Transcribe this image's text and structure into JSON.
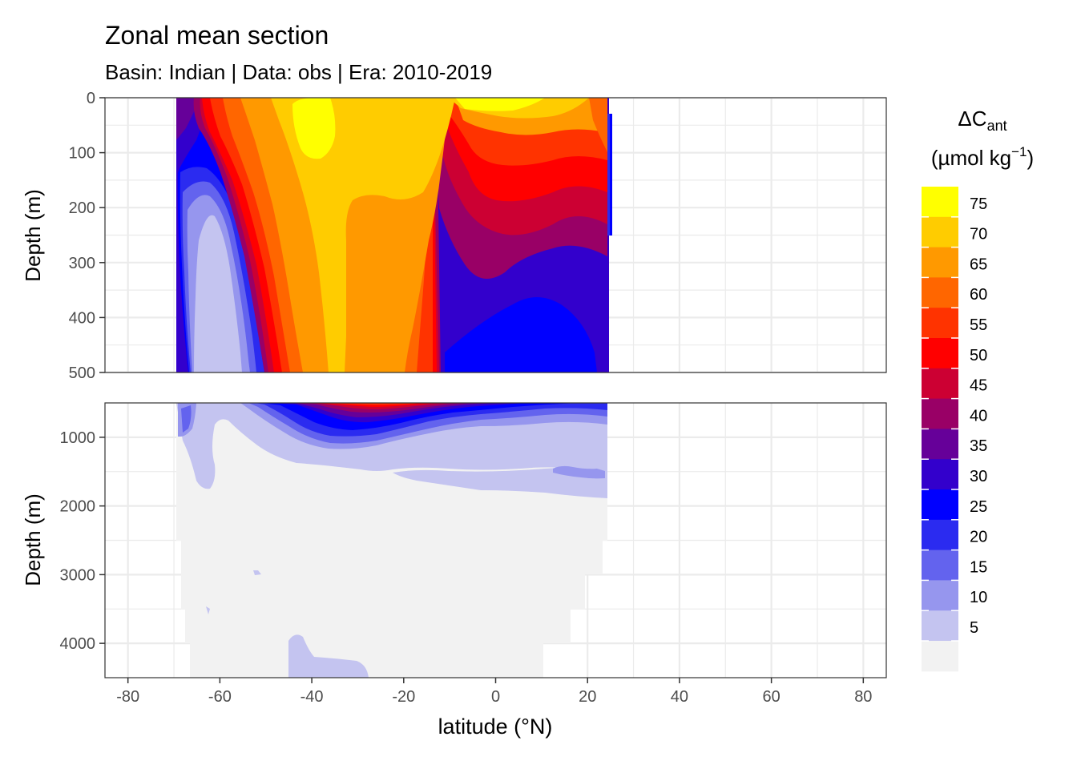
{
  "chart_data": {
    "type": "heatmap",
    "title": "Zonal mean section",
    "subtitle": "Basin: Indian | Data: obs | Era: 2010-2019",
    "xlabel": "latitude (°N)",
    "ylabel_top": "Depth (m)",
    "ylabel_bottom": "Depth (m)",
    "legend": {
      "title_main": "ΔC",
      "title_sub": "ant",
      "units_prefix": "(µmol kg",
      "units_sup": "−1",
      "units_suffix": ")",
      "placement": "right",
      "breaks": [
        "75",
        "70",
        "65",
        "60",
        "55",
        "50",
        "45",
        "40",
        "35",
        "30",
        "25",
        "20",
        "15",
        "10",
        "5"
      ],
      "colors_top_to_bottom": [
        "#ffff00",
        "#ffcc00",
        "#ff9900",
        "#ff6600",
        "#ff3300",
        "#ff0000",
        "#cc0033",
        "#990066",
        "#660099",
        "#3300cc",
        "#0000ff",
        "#2b2bf0",
        "#6363ee",
        "#9696ee",
        "#c4c4f0",
        "#f2f2f2"
      ]
    },
    "xlim": [
      -85,
      85
    ],
    "x_ticks": [
      "-80",
      "-60",
      "-40",
      "-20",
      "0",
      "20",
      "40",
      "60",
      "80"
    ],
    "x_tick_values": [
      -80,
      -60,
      -40,
      -20,
      0,
      20,
      40,
      60,
      80
    ],
    "top_panel": {
      "ylim": [
        0,
        500
      ],
      "y_ticks": [
        "0",
        "100",
        "200",
        "300",
        "400",
        "500"
      ],
      "y_tick_values": [
        0,
        100,
        200,
        300,
        400,
        500
      ]
    },
    "bottom_panel": {
      "ylim": [
        500,
        4500
      ],
      "y_ticks": [
        "1000",
        "2000",
        "3000",
        "4000"
      ],
      "y_tick_values": [
        1000,
        2000,
        3000,
        4000
      ]
    },
    "data_extent_lat": [
      -69.5,
      24.5
    ],
    "grid": true
  }
}
